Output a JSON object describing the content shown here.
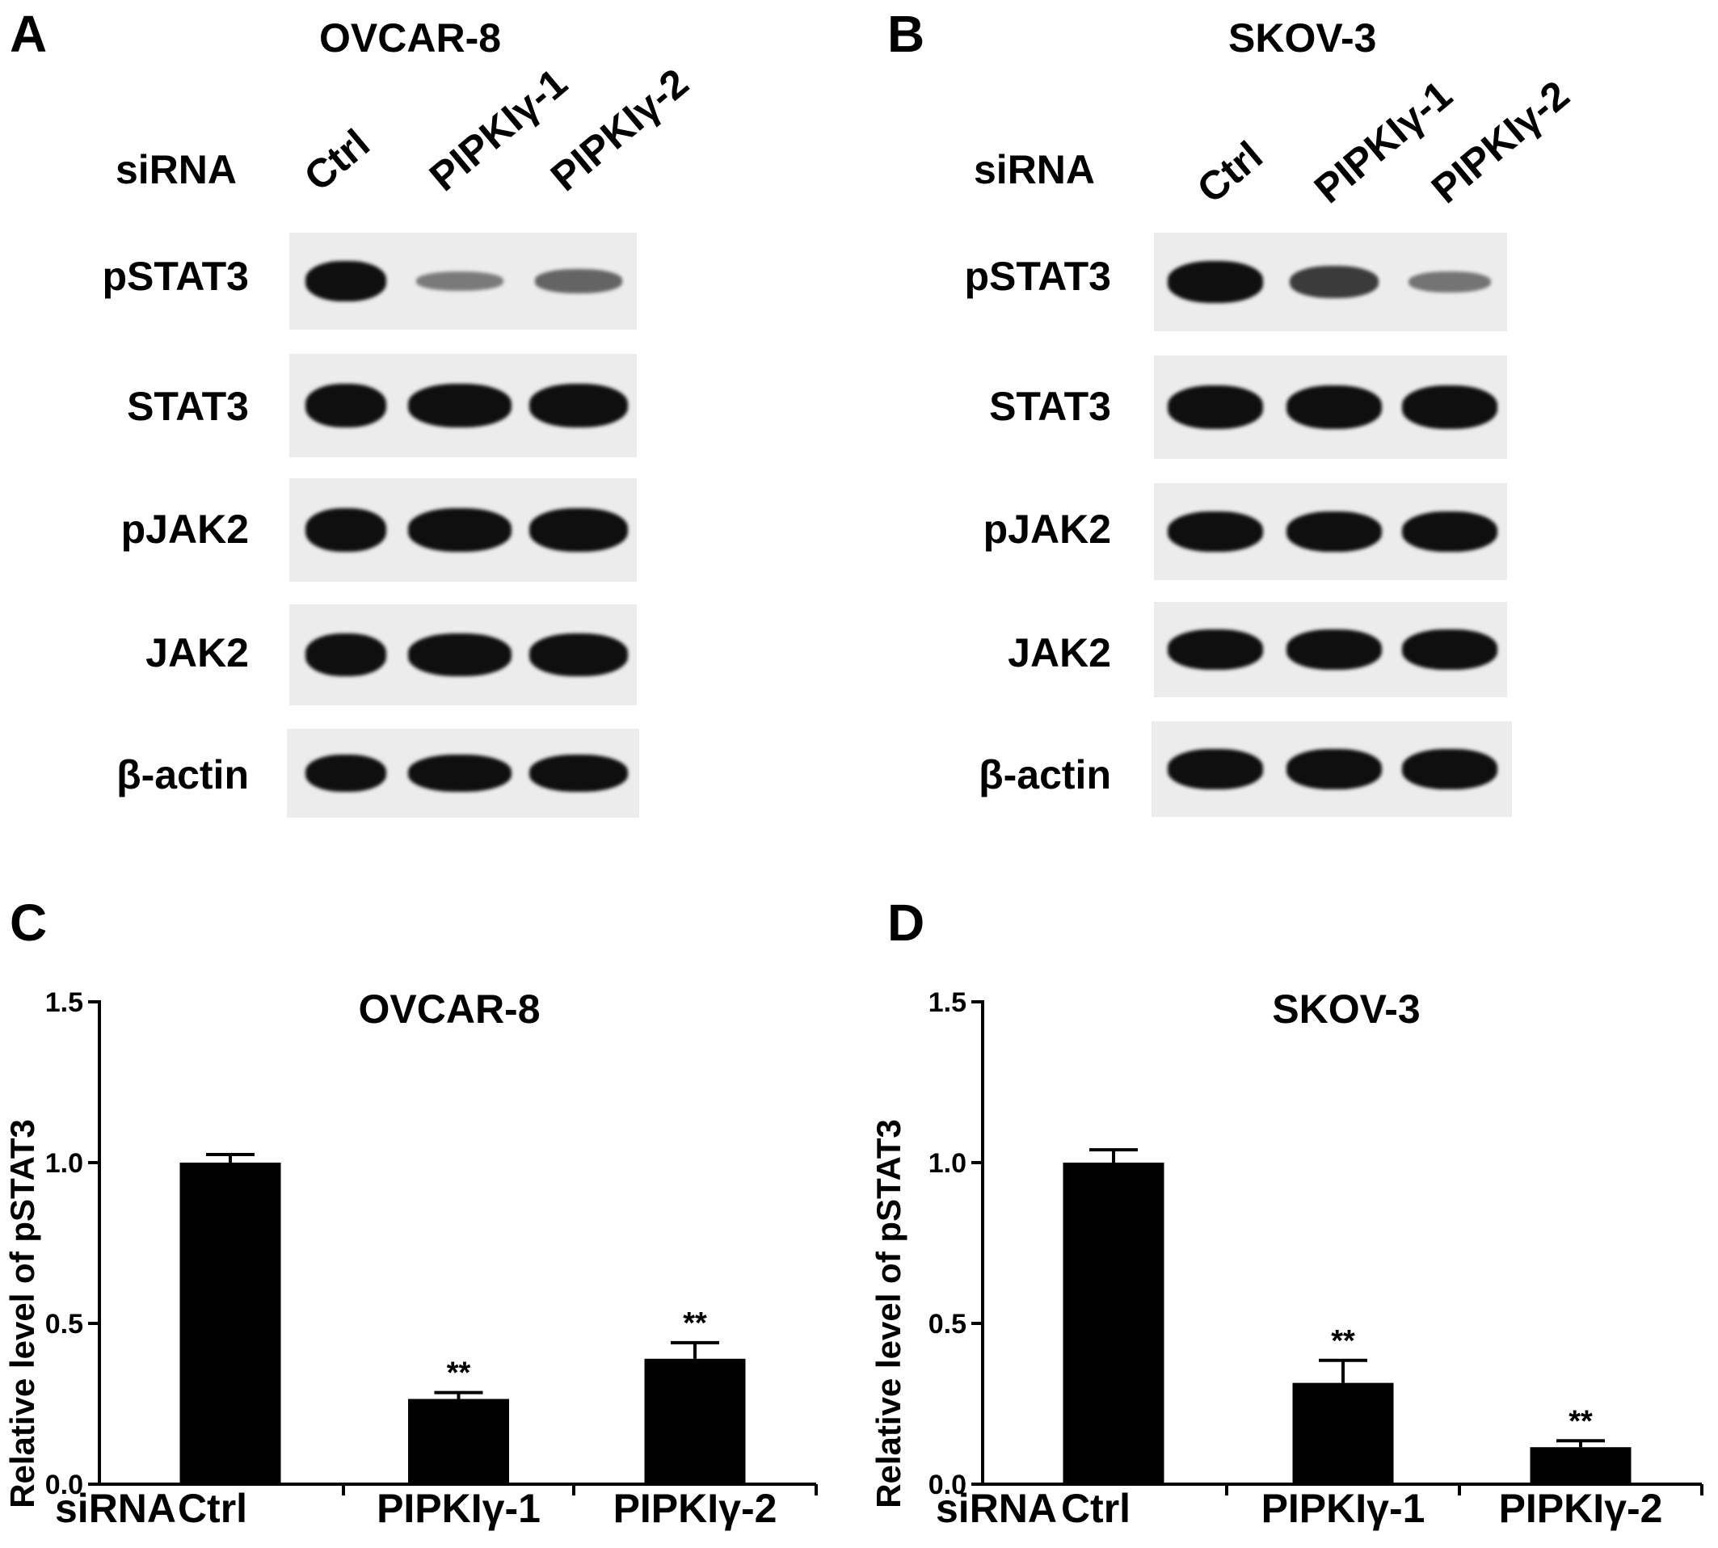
{
  "panels": {
    "A": {
      "letter": "A",
      "cell_line": "OVCAR-8",
      "sirna_label": "siRNA",
      "lanes": [
        "Ctrl",
        "PIPKIγ-1",
        "PIPKIγ-2"
      ],
      "rows": [
        {
          "label": "pSTAT3",
          "intensity": [
            1.0,
            0.25,
            0.4
          ]
        },
        {
          "label": "STAT3",
          "intensity": [
            1.0,
            1.0,
            1.0
          ]
        },
        {
          "label": "pJAK2",
          "intensity": [
            1.0,
            1.0,
            1.0
          ]
        },
        {
          "label": "JAK2",
          "intensity": [
            1.0,
            1.0,
            1.0
          ]
        },
        {
          "label": "β-actin",
          "intensity": [
            1.0,
            1.0,
            1.0
          ]
        }
      ]
    },
    "B": {
      "letter": "B",
      "cell_line": "SKOV-3",
      "sirna_label": "siRNA",
      "lanes": [
        "Ctrl",
        "PIPKIγ-1",
        "PIPKIγ-2"
      ],
      "rows": [
        {
          "label": "pSTAT3",
          "intensity": [
            1.0,
            0.7,
            0.3
          ]
        },
        {
          "label": "STAT3",
          "intensity": [
            1.0,
            1.0,
            1.0
          ]
        },
        {
          "label": "pJAK2",
          "intensity": [
            1.0,
            1.0,
            1.0
          ]
        },
        {
          "label": "JAK2",
          "intensity": [
            1.0,
            1.0,
            1.0
          ]
        },
        {
          "label": "β-actin",
          "intensity": [
            1.0,
            1.0,
            1.0
          ]
        }
      ]
    },
    "C": {
      "letter": "C"
    },
    "D": {
      "letter": "D"
    }
  },
  "chart_data": [
    {
      "type": "bar",
      "title": "OVCAR-8",
      "ylabel": "Relative level of pSTAT3",
      "x_prefix": "siRNA",
      "categories": [
        "Ctrl",
        "PIPKIγ-1",
        "PIPKIγ-2"
      ],
      "values": [
        1.0,
        0.265,
        0.39
      ],
      "errors": [
        0.025,
        0.02,
        0.05
      ],
      "significance": [
        "",
        "**",
        "**"
      ],
      "ylim": [
        0,
        1.5
      ],
      "yticks": [
        "0.0",
        "0.5",
        "1.0",
        "1.5"
      ],
      "color": "#000000"
    },
    {
      "type": "bar",
      "title": "SKOV-3",
      "ylabel": "Relative level of pSTAT3",
      "x_prefix": "siRNA",
      "categories": [
        "Ctrl",
        "PIPKIγ-1",
        "PIPKIγ-2"
      ],
      "values": [
        1.0,
        0.315,
        0.115
      ],
      "errors": [
        0.04,
        0.07,
        0.02
      ],
      "significance": [
        "",
        "**",
        "**"
      ],
      "ylim": [
        0,
        1.5
      ],
      "yticks": [
        "0.0",
        "0.5",
        "1.0",
        "1.5"
      ],
      "color": "#000000"
    }
  ]
}
